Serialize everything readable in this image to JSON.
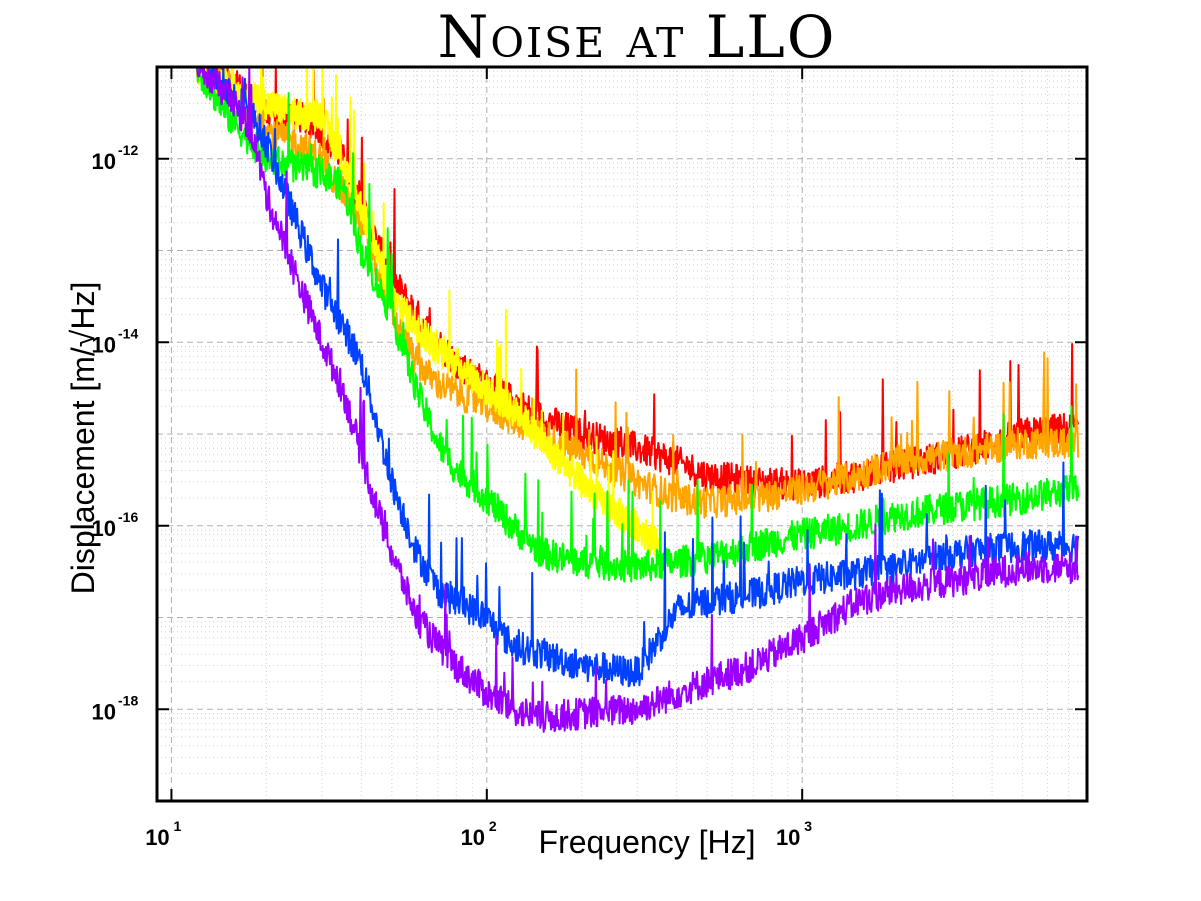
{
  "chart_data": {
    "type": "line",
    "title": "Noise at LLO",
    "xlabel": "Frequency [Hz]",
    "ylabel": "Displacement [m/√Hz]",
    "x_scale": "log",
    "y_scale": "log",
    "xlim": [
      9,
      8000
    ],
    "ylim": [
      1e-19,
      1e-11
    ],
    "grid": true,
    "x_ticks": [
      {
        "base": "10",
        "exp": "1",
        "value": 10
      },
      {
        "base": "10",
        "exp": "2",
        "value": 100
      },
      {
        "base": "10",
        "exp": "3",
        "value": 1000
      }
    ],
    "y_ticks": [
      {
        "base": "10",
        "exp": "-12",
        "value": 1e-12
      },
      {
        "base": "10",
        "exp": "-14",
        "value": 1e-14
      },
      {
        "base": "10",
        "exp": "-16",
        "value": 1e-16
      },
      {
        "base": "10",
        "exp": "-18",
        "value": 1e-18
      }
    ],
    "series": [
      {
        "color": "#ff0000",
        "points": [
          [
            12,
            1e-11
          ],
          [
            15,
            8e-12
          ],
          [
            20,
            3e-12
          ],
          [
            25,
            3e-12
          ],
          [
            30,
            2e-12
          ],
          [
            35,
            1e-12
          ],
          [
            40,
            3e-13
          ],
          [
            50,
            5e-14
          ],
          [
            60,
            2e-14
          ],
          [
            70,
            1e-14
          ],
          [
            80,
            6e-15
          ],
          [
            100,
            3.5e-15
          ],
          [
            130,
            2e-15
          ],
          [
            150,
            1.5e-15
          ],
          [
            200,
            1e-15
          ],
          [
            300,
            7e-16
          ],
          [
            400,
            5e-16
          ],
          [
            500,
            3.5e-16
          ],
          [
            700,
            3e-16
          ],
          [
            1000,
            2.8e-16
          ],
          [
            1500,
            3.5e-16
          ],
          [
            2000,
            4.5e-16
          ],
          [
            3000,
            6e-16
          ],
          [
            5000,
            1e-15
          ],
          [
            7500,
            1.2e-15
          ]
        ]
      },
      {
        "color": "#ffa500",
        "points": [
          [
            12,
            1e-11
          ],
          [
            15,
            5e-12
          ],
          [
            20,
            2e-12
          ],
          [
            25,
            1.5e-12
          ],
          [
            30,
            1e-12
          ],
          [
            40,
            2e-13
          ],
          [
            50,
            2e-14
          ],
          [
            60,
            6e-15
          ],
          [
            70,
            3.5e-15
          ],
          [
            100,
            2e-15
          ],
          [
            150,
            1e-15
          ],
          [
            200,
            6e-16
          ],
          [
            300,
            3e-16
          ],
          [
            400,
            2e-16
          ],
          [
            500,
            1.8e-16
          ],
          [
            700,
            2e-16
          ],
          [
            1000,
            2.5e-16
          ],
          [
            1500,
            3.5e-16
          ],
          [
            2000,
            5e-16
          ],
          [
            3000,
            6e-16
          ],
          [
            5000,
            8e-16
          ],
          [
            7500,
            8e-16
          ]
        ]
      },
      {
        "color": "#ffff00",
        "points": [
          [
            12,
            1e-11
          ],
          [
            15,
            6e-12
          ],
          [
            20,
            4e-12
          ],
          [
            25,
            3e-12
          ],
          [
            30,
            3e-12
          ],
          [
            40,
            3e-13
          ],
          [
            50,
            3e-14
          ],
          [
            60,
            1.5e-14
          ],
          [
            70,
            8e-15
          ],
          [
            80,
            6e-15
          ],
          [
            100,
            3e-15
          ],
          [
            130,
            1.5e-15
          ],
          [
            150,
            8e-16
          ],
          [
            200,
            3e-16
          ],
          [
            250,
            1.5e-16
          ],
          [
            300,
            1e-16
          ],
          [
            350,
            6e-17
          ]
        ]
      },
      {
        "color": "#00ff00",
        "points": [
          [
            12,
            1e-11
          ],
          [
            15,
            3e-12
          ],
          [
            20,
            1e-12
          ],
          [
            25,
            8e-13
          ],
          [
            30,
            7e-13
          ],
          [
            35,
            5e-13
          ],
          [
            40,
            1e-13
          ],
          [
            50,
            2e-14
          ],
          [
            60,
            3e-15
          ],
          [
            70,
            8e-16
          ],
          [
            80,
            4e-16
          ],
          [
            100,
            2e-16
          ],
          [
            120,
            1e-16
          ],
          [
            150,
            5e-17
          ],
          [
            200,
            4e-17
          ],
          [
            300,
            3.5e-17
          ],
          [
            400,
            4e-17
          ],
          [
            500,
            4.5e-17
          ],
          [
            700,
            6e-17
          ],
          [
            1000,
            8e-17
          ],
          [
            1500,
            1e-16
          ],
          [
            2000,
            1.3e-16
          ],
          [
            3000,
            1.6e-16
          ],
          [
            5000,
            2e-16
          ],
          [
            7500,
            2.5e-16
          ]
        ]
      },
      {
        "color": "#0040ff",
        "points": [
          [
            13,
            1e-11
          ],
          [
            15,
            6e-12
          ],
          [
            18,
            3e-12
          ],
          [
            20,
            1.5e-12
          ],
          [
            25,
            2e-13
          ],
          [
            30,
            4e-14
          ],
          [
            35,
            1.5e-14
          ],
          [
            40,
            6e-15
          ],
          [
            50,
            3e-16
          ],
          [
            60,
            5e-17
          ],
          [
            70,
            2e-17
          ],
          [
            80,
            1.5e-17
          ],
          [
            100,
            1e-17
          ],
          [
            120,
            5e-18
          ],
          [
            150,
            4e-18
          ],
          [
            200,
            3e-18
          ],
          [
            300,
            2.5e-18
          ],
          [
            400,
            1.2e-17
          ],
          [
            500,
            1.5e-17
          ],
          [
            700,
            1.8e-17
          ],
          [
            1000,
            2.5e-17
          ],
          [
            1500,
            3e-17
          ],
          [
            2000,
            3.5e-17
          ],
          [
            3000,
            5e-17
          ],
          [
            5000,
            6e-17
          ],
          [
            7500,
            6e-17
          ]
        ]
      },
      {
        "color": "#9900ff",
        "points": [
          [
            12,
            1e-11
          ],
          [
            15,
            5e-12
          ],
          [
            18,
            2e-12
          ],
          [
            20,
            4e-13
          ],
          [
            25,
            5e-14
          ],
          [
            30,
            1e-14
          ],
          [
            35,
            3e-15
          ],
          [
            40,
            6e-16
          ],
          [
            45,
            1.5e-16
          ],
          [
            50,
            5e-17
          ],
          [
            60,
            1e-17
          ],
          [
            70,
            5e-18
          ],
          [
            80,
            3e-18
          ],
          [
            100,
            1.5e-18
          ],
          [
            120,
            1e-18
          ],
          [
            150,
            8e-19
          ],
          [
            200,
            9e-19
          ],
          [
            300,
            1e-18
          ],
          [
            400,
            1.5e-18
          ],
          [
            500,
            2e-18
          ],
          [
            700,
            3e-18
          ],
          [
            1000,
            6e-18
          ],
          [
            1500,
            1.5e-17
          ],
          [
            2000,
            2e-17
          ],
          [
            3000,
            2.5e-17
          ],
          [
            5000,
            3.5e-17
          ],
          [
            7500,
            3.5e-17
          ]
        ]
      }
    ]
  }
}
